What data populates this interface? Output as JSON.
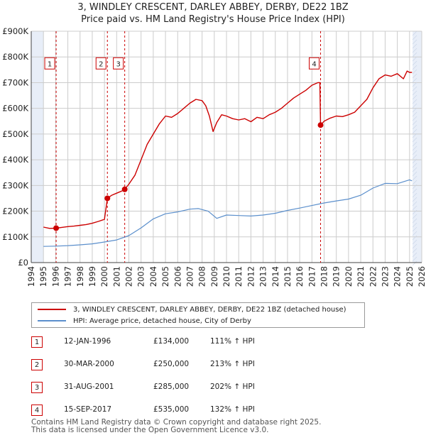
{
  "title_line1": "3, WINDLEY CRESCENT, DARLEY ABBEY, DERBY, DE22 1BZ",
  "title_line2": "Price paid vs. HM Land Registry's House Price Index (HPI)",
  "colors": {
    "property": "#cc0000",
    "hpi": "#5b8fcc",
    "shade": "#e8eef8",
    "grid": "#cccccc",
    "marker": "#cc0000"
  },
  "chart_data": {
    "type": "line",
    "xlim": [
      1994,
      2026
    ],
    "ylim": [
      0,
      900000
    ],
    "y_ticks": [
      0,
      100000,
      200000,
      300000,
      400000,
      500000,
      600000,
      700000,
      800000,
      900000
    ],
    "y_tick_labels": [
      "£0",
      "£100K",
      "£200K",
      "£300K",
      "£400K",
      "£500K",
      "£600K",
      "£700K",
      "£800K",
      "£900K"
    ],
    "x_ticks": [
      1994,
      1995,
      1996,
      1997,
      1998,
      1999,
      2000,
      2001,
      2002,
      2003,
      2004,
      2005,
      2006,
      2007,
      2008,
      2009,
      2010,
      2011,
      2012,
      2013,
      2014,
      2015,
      2016,
      2017,
      2018,
      2019,
      2020,
      2021,
      2022,
      2023,
      2024,
      2025,
      2026
    ],
    "x_tick_labels": [
      "1994",
      "1995",
      "1996",
      "1997",
      "1998",
      "1999",
      "2000",
      "2001",
      "2002",
      "2003",
      "2004",
      "2005",
      "2006",
      "2007",
      "2008",
      "2009",
      "2010",
      "2011",
      "2012",
      "2013",
      "2014",
      "2015",
      "2016",
      "2017",
      "2018",
      "2019",
      "2020",
      "2021",
      "2022",
      "2023",
      "2024",
      "2025",
      "2026"
    ],
    "shaded_ranges": [
      [
        1994,
        1995
      ],
      [
        2025.25,
        2026
      ]
    ],
    "series": [
      {
        "name": "3, WINDLEY CRESCENT, DARLEY ABBEY, DERBY, DE22 1BZ (detached house)",
        "x": [
          1995.0,
          1995.5,
          1996.04,
          1996.5,
          1997,
          1997.5,
          1998,
          1998.5,
          1999,
          1999.5,
          2000.0,
          2000.24,
          2000.6,
          2001,
          2001.4,
          2001.66,
          2002,
          2002.5,
          2003,
          2003.5,
          2004,
          2004.5,
          2005,
          2005.5,
          2006,
          2006.5,
          2007,
          2007.5,
          2008,
          2008.3,
          2008.6,
          2008.9,
          2009.2,
          2009.6,
          2010,
          2010.5,
          2011,
          2011.5,
          2012,
          2012.5,
          2013,
          2013.5,
          2014,
          2014.5,
          2015,
          2015.5,
          2016,
          2016.5,
          2017,
          2017.5,
          2017.65,
          2017.71,
          2018,
          2018.5,
          2019,
          2019.5,
          2020,
          2020.5,
          2021,
          2021.5,
          2022,
          2022.5,
          2023,
          2023.5,
          2024,
          2024.5,
          2024.8,
          2025.0,
          2025.2
        ],
        "values": [
          138000,
          133000,
          134000,
          137000,
          140000,
          142000,
          145000,
          148000,
          153000,
          160000,
          168000,
          250000,
          262000,
          270000,
          278000,
          285000,
          305000,
          340000,
          400000,
          460000,
          500000,
          540000,
          570000,
          565000,
          580000,
          600000,
          620000,
          635000,
          630000,
          610000,
          570000,
          510000,
          545000,
          575000,
          570000,
          560000,
          555000,
          560000,
          548000,
          565000,
          560000,
          575000,
          585000,
          600000,
          620000,
          640000,
          655000,
          670000,
          690000,
          700000,
          700000,
          535000,
          550000,
          562000,
          570000,
          568000,
          575000,
          585000,
          610000,
          635000,
          680000,
          715000,
          730000,
          725000,
          735000,
          715000,
          745000,
          740000,
          740000
        ]
      },
      {
        "name": "HPI: Average price, detached house, City of Derby",
        "x": [
          1995,
          1996,
          1997,
          1998,
          1999,
          2000,
          2001,
          2002,
          2003,
          2004,
          2005,
          2006,
          2007,
          2007.7,
          2008.5,
          2009.2,
          2010,
          2011,
          2012,
          2013,
          2014,
          2015,
          2016,
          2017,
          2018,
          2019,
          2020,
          2021,
          2022,
          2023,
          2024,
          2025,
          2025.2
        ],
        "values": [
          63000,
          64000,
          66000,
          69000,
          73000,
          80000,
          88000,
          105000,
          135000,
          170000,
          190000,
          197000,
          208000,
          210000,
          200000,
          172000,
          185000,
          183000,
          181000,
          185000,
          192000,
          203000,
          212000,
          222000,
          232000,
          240000,
          247000,
          262000,
          290000,
          308000,
          307000,
          322000,
          318000
        ]
      }
    ],
    "sales_markers": [
      {
        "id": "1",
        "x": 1996.04,
        "y": 134000
      },
      {
        "id": "2",
        "x": 2000.24,
        "y": 250000
      },
      {
        "id": "3",
        "x": 2001.66,
        "y": 285000
      },
      {
        "id": "4",
        "x": 2017.71,
        "y": 535000
      }
    ],
    "sales_label_y": 775000
  },
  "legend": {
    "property_label": "3, WINDLEY CRESCENT, DARLEY ABBEY, DERBY, DE22 1BZ (detached house)",
    "hpi_label": "HPI: Average price, detached house, City of Derby"
  },
  "sales_table": [
    {
      "id": "1",
      "date": "12-JAN-1996",
      "price": "£134,000",
      "hpi": "111% ↑ HPI"
    },
    {
      "id": "2",
      "date": "30-MAR-2000",
      "price": "£250,000",
      "hpi": "213% ↑ HPI"
    },
    {
      "id": "3",
      "date": "31-AUG-2001",
      "price": "£285,000",
      "hpi": "202% ↑ HPI"
    },
    {
      "id": "4",
      "date": "15-SEP-2017",
      "price": "£535,000",
      "hpi": "132% ↑ HPI"
    }
  ],
  "footer_line1": "Contains HM Land Registry data © Crown copyright and database right 2025.",
  "footer_line2": "This data is licensed under the Open Government Licence v3.0."
}
